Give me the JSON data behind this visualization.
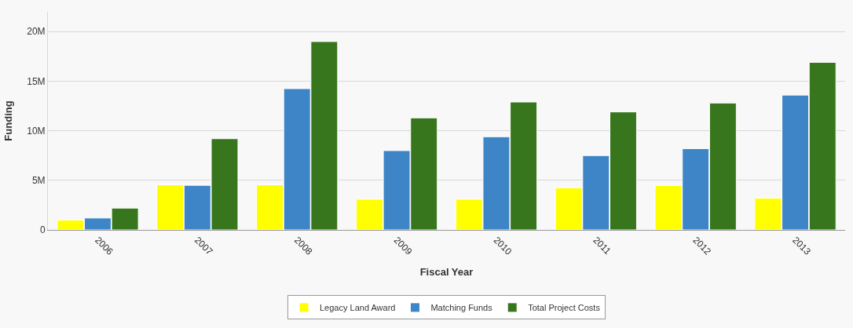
{
  "chart_data": {
    "type": "bar",
    "xlabel": "Fiscal Year",
    "ylabel": "Funding",
    "categories": [
      "2006",
      "2007",
      "2008",
      "2009",
      "2010",
      "2011",
      "2012",
      "2013"
    ],
    "series": [
      {
        "name": "Legacy Land Award",
        "color": "#ffff00",
        "values": [
          1.0,
          4.55,
          4.55,
          3.1,
          3.1,
          4.25,
          4.5,
          3.2
        ]
      },
      {
        "name": "Matching Funds",
        "color": "#3d85c6",
        "values": [
          1.2,
          4.5,
          14.25,
          8.0,
          9.4,
          7.5,
          8.2,
          13.6
        ]
      },
      {
        "name": "Total Project Costs",
        "color": "#38761d",
        "values": [
          2.2,
          9.2,
          19.0,
          11.3,
          12.9,
          11.9,
          12.8,
          16.9
        ]
      }
    ],
    "ylim": [
      0,
      22
    ],
    "yticks": [
      {
        "value": 0,
        "label": "0"
      },
      {
        "value": 5,
        "label": "5M"
      },
      {
        "value": 10,
        "label": "10M"
      },
      {
        "value": 15,
        "label": "15M"
      },
      {
        "value": 20,
        "label": "20M"
      }
    ],
    "grid": "y",
    "legend": "bottom"
  }
}
